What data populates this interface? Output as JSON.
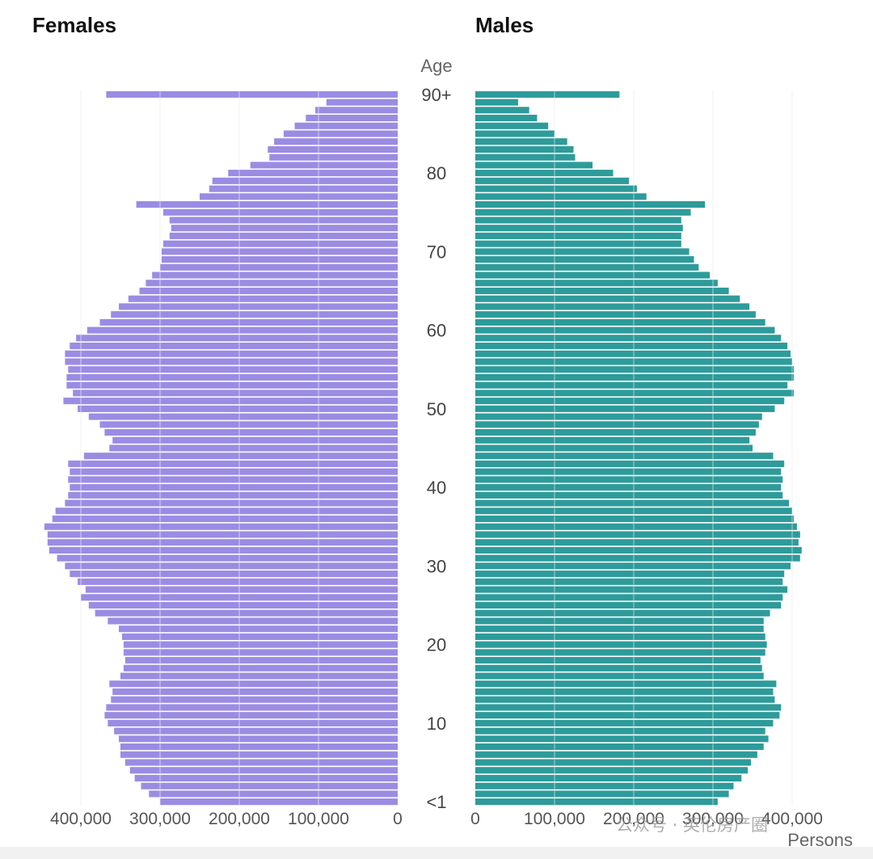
{
  "chart_data": {
    "type": "bar",
    "orientation": "horizontal-population-pyramid",
    "panels": {
      "left_title": "Females",
      "right_title": "Males"
    },
    "axis_title_age": "Age",
    "axis_title_value": "Persons",
    "age_tick_labels": [
      "90+",
      "80",
      "70",
      "60",
      "50",
      "40",
      "30",
      "20",
      "10",
      "<1"
    ],
    "ages": [
      0,
      1,
      2,
      3,
      4,
      5,
      6,
      7,
      8,
      9,
      10,
      11,
      12,
      13,
      14,
      15,
      16,
      17,
      18,
      19,
      20,
      21,
      22,
      23,
      24,
      25,
      26,
      27,
      28,
      29,
      30,
      31,
      32,
      33,
      34,
      35,
      36,
      37,
      38,
      39,
      40,
      41,
      42,
      43,
      44,
      45,
      46,
      47,
      48,
      49,
      50,
      51,
      52,
      53,
      54,
      55,
      56,
      57,
      58,
      59,
      60,
      61,
      62,
      63,
      64,
      65,
      66,
      67,
      68,
      69,
      70,
      71,
      72,
      73,
      74,
      75,
      76,
      77,
      78,
      79,
      80,
      81,
      82,
      83,
      84,
      85,
      86,
      87,
      88,
      89,
      90
    ],
    "x_ticks_females": [
      "400,000",
      "300,000",
      "200,000",
      "100,000",
      "0"
    ],
    "x_ticks_males": [
      "0",
      "100,000",
      "200,000",
      "300,000",
      "400,000"
    ],
    "xlim": [
      0,
      450000
    ],
    "grid": true,
    "series": [
      {
        "name": "Females",
        "color": "#9b8ce3",
        "values": [
          300000,
          314000,
          324000,
          332000,
          338000,
          344000,
          350000,
          350000,
          352000,
          358000,
          366000,
          370000,
          368000,
          362000,
          360000,
          364000,
          350000,
          346000,
          344000,
          346000,
          346000,
          348000,
          352000,
          366000,
          382000,
          390000,
          400000,
          394000,
          404000,
          414000,
          420000,
          430000,
          440000,
          442000,
          442000,
          446000,
          436000,
          432000,
          420000,
          416000,
          414000,
          416000,
          414000,
          416000,
          396000,
          364000,
          360000,
          370000,
          376000,
          390000,
          404000,
          422000,
          410000,
          418000,
          418000,
          416000,
          420000,
          420000,
          414000,
          406000,
          392000,
          376000,
          362000,
          352000,
          340000,
          326000,
          318000,
          310000,
          300000,
          298000,
          298000,
          296000,
          288000,
          286000,
          288000,
          296000,
          330000,
          250000,
          238000,
          234000,
          214000,
          186000,
          162000,
          164000,
          156000,
          144000,
          130000,
          116000,
          104000,
          90000,
          368000
        ]
      },
      {
        "name": "Males",
        "color": "#2e9b9b",
        "values": [
          306000,
          320000,
          326000,
          336000,
          344000,
          348000,
          356000,
          364000,
          370000,
          366000,
          376000,
          384000,
          386000,
          378000,
          376000,
          380000,
          364000,
          362000,
          360000,
          366000,
          368000,
          366000,
          364000,
          364000,
          372000,
          386000,
          388000,
          394000,
          388000,
          390000,
          398000,
          410000,
          412000,
          408000,
          410000,
          406000,
          402000,
          400000,
          396000,
          388000,
          386000,
          388000,
          386000,
          390000,
          376000,
          350000,
          346000,
          354000,
          358000,
          362000,
          378000,
          390000,
          402000,
          394000,
          402000,
          402000,
          400000,
          398000,
          394000,
          386000,
          378000,
          366000,
          354000,
          346000,
          334000,
          320000,
          306000,
          296000,
          282000,
          276000,
          270000,
          260000,
          260000,
          262000,
          260000,
          272000,
          290000,
          216000,
          204000,
          194000,
          174000,
          148000,
          126000,
          124000,
          116000,
          100000,
          92000,
          78000,
          68000,
          54000,
          182000
        ]
      }
    ]
  },
  "watermark": {
    "text": "公众号 · 英伦房产圈"
  }
}
